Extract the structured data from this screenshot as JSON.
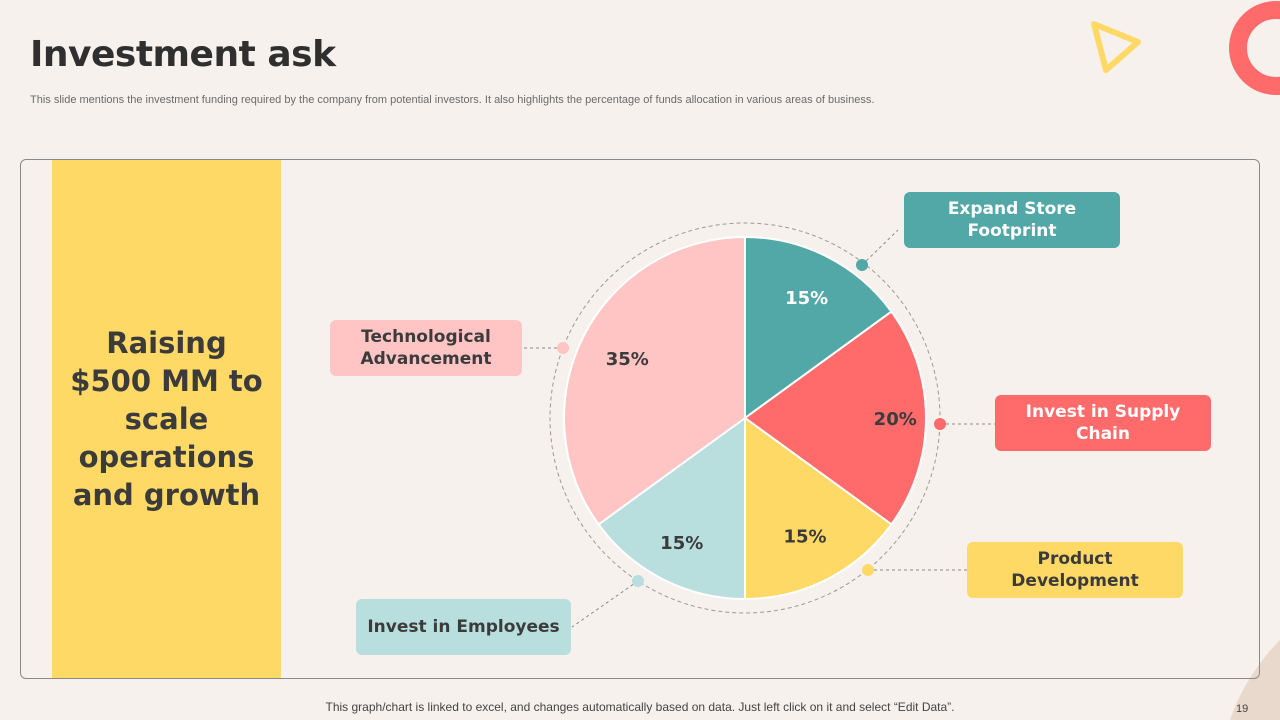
{
  "slide": {
    "title": "Investment ask",
    "subtitle": "This slide mentions the investment funding required by the company from potential investors. It also highlights the percentage of funds allocation in various areas of business.",
    "headline": "Raising $500 MM to scale operations and growth",
    "footer": "This graph/chart is linked to excel, and changes automatically based on data. Just left click on it and select “Edit Data”.",
    "page_number": "19"
  },
  "chart_data": {
    "type": "pie",
    "title": "",
    "start_angle_deg": 0,
    "direction": "clockwise",
    "slices": [
      {
        "label": "Expand Store Footprint",
        "value": 15,
        "value_label": "15%",
        "color": "#52a8a7",
        "label_bg": "#52a8a7",
        "label_color": "#ffffff",
        "value_color": "#ffffff"
      },
      {
        "label": "Invest in Supply Chain",
        "value": 20,
        "value_label": "20%",
        "color": "#ff6b6b",
        "label_bg": "#ff6b6b",
        "label_color": "#ffffff",
        "value_color": "#3b3b3b"
      },
      {
        "label": "Product Development",
        "value": 15,
        "value_label": "15%",
        "color": "#ffd966",
        "label_bg": "#ffd966",
        "label_color": "#3b3b3b",
        "value_color": "#3b3b3b"
      },
      {
        "label": "Invest in Employees",
        "value": 15,
        "value_label": "15%",
        "color": "#b8dede",
        "label_bg": "#b8dede",
        "label_color": "#3b3b3b",
        "value_color": "#3b3b3b"
      },
      {
        "label": "Technological Advancement",
        "value": 35,
        "value_label": "35%",
        "color": "#ffc4c4",
        "label_bg": "#ffc4c4",
        "label_color": "#3b3b3b",
        "value_color": "#3b3b3b"
      }
    ]
  },
  "colors": {
    "background": "#f6f1ed",
    "accent_yellow": "#ffd966",
    "accent_red": "#ff6b6b"
  }
}
